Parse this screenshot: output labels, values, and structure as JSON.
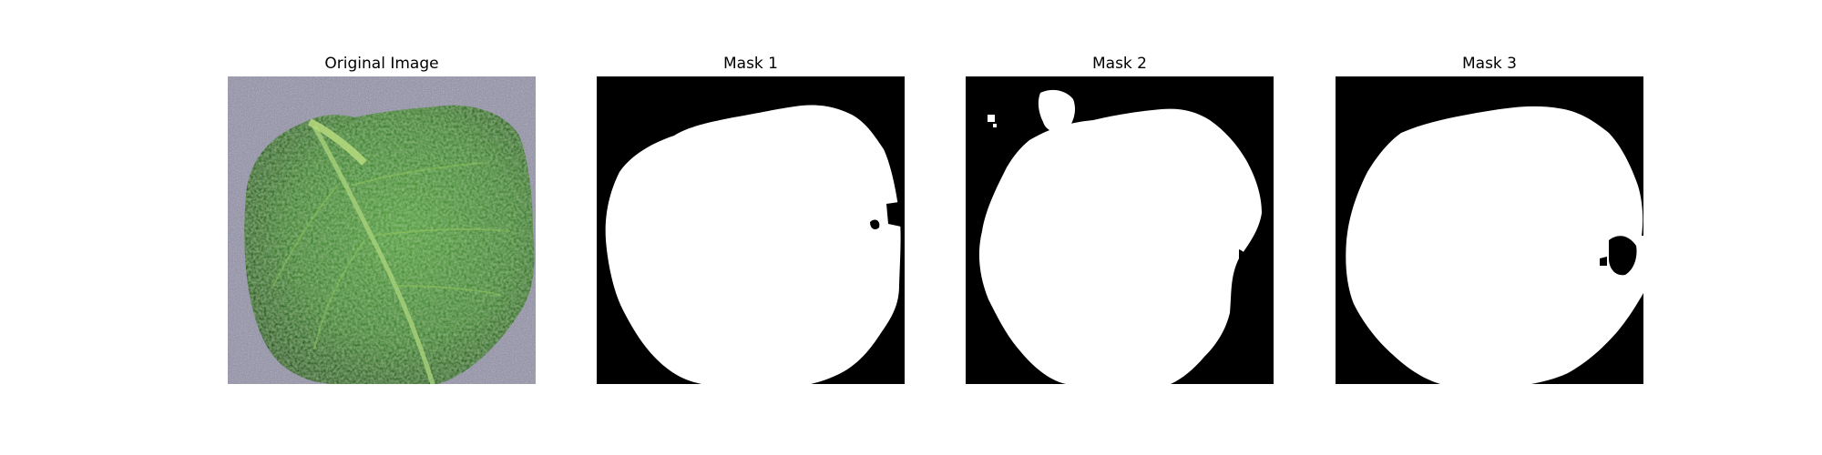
{
  "figure": {
    "panels": [
      {
        "title": "Original Image",
        "content": "photo of a green leaf on gray fabric"
      },
      {
        "title": "Mask 1",
        "content": "binary mask"
      },
      {
        "title": "Mask 2",
        "content": "binary mask"
      },
      {
        "title": "Mask 3",
        "content": "binary mask"
      }
    ]
  },
  "colors": {
    "background": "#ffffff",
    "mask_foreground": "#ffffff",
    "mask_background": "#000000",
    "leaf_dark": "#1f4d18",
    "leaf_mid": "#3f8a2e",
    "leaf_light": "#7fc25a",
    "fabric": "#8f8ea8"
  }
}
